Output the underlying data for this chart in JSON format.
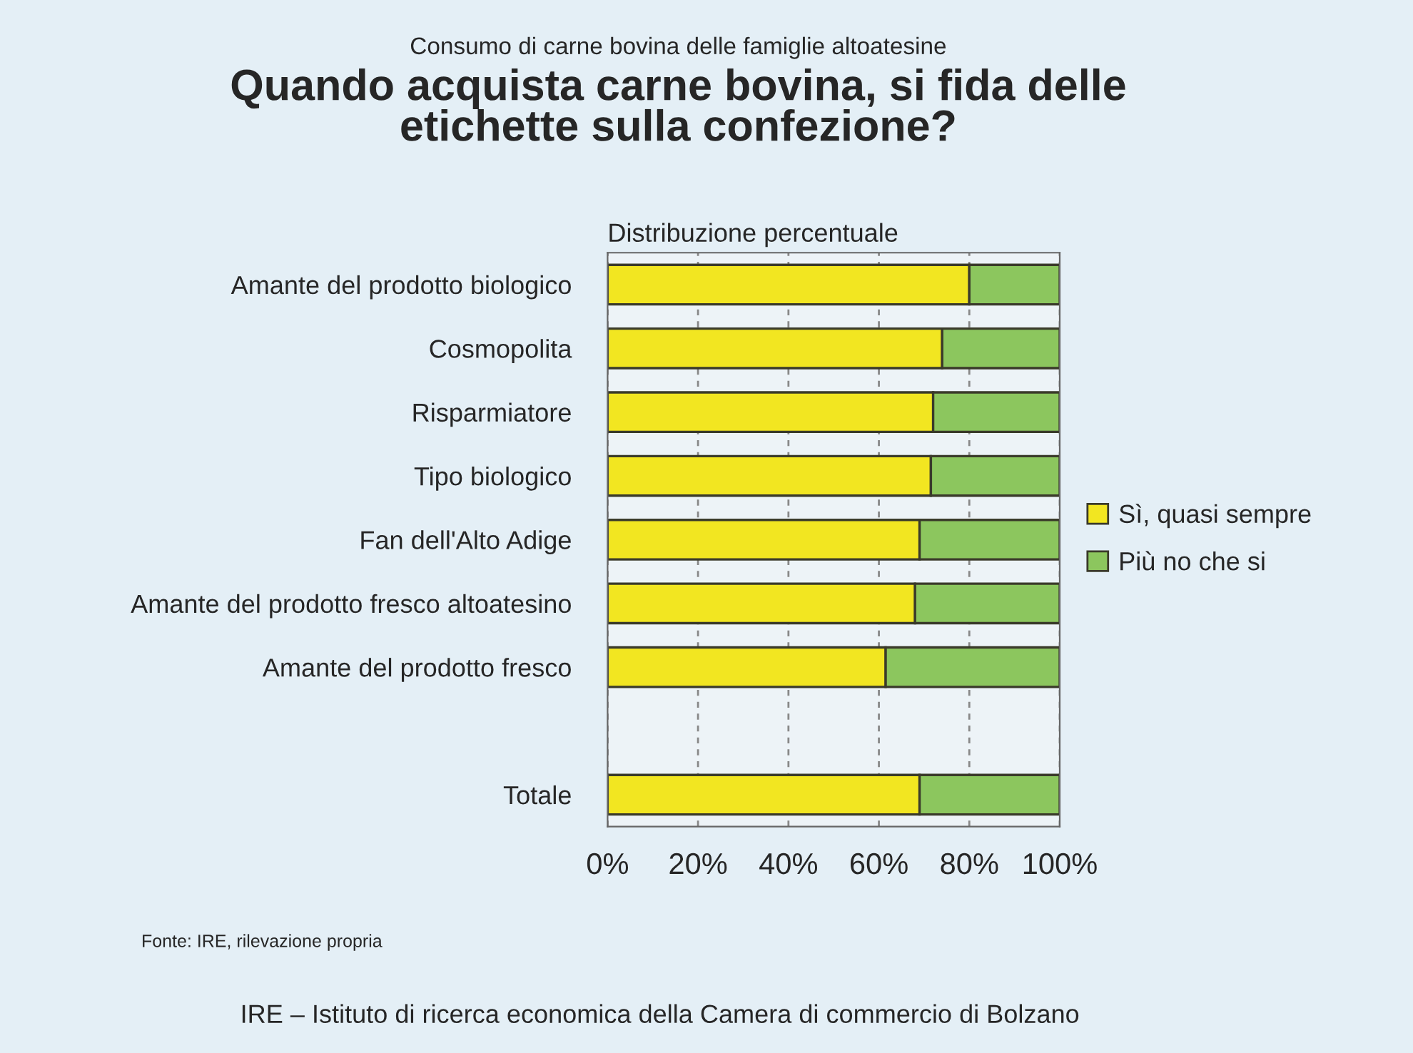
{
  "chart_data": {
    "type": "bar",
    "orientation": "horizontal",
    "stacked": true,
    "subtitle": "Consumo di carne bovina delle famiglie altoatesine",
    "title": "Quando acquista carne bovina, si fida delle\netichette sulla confezione?",
    "categories": [
      "Amante del prodotto biologico",
      "Cosmopolita",
      "Risparmiatore",
      "Tipo biologico",
      "Fan dell'Alto Adige",
      "Amante del prodotto fresco altoatesino",
      "Amante del prodotto fresco",
      null,
      "Totale"
    ],
    "series": [
      {
        "name": "Sì, quasi sempre",
        "color": "#f2e621",
        "values": [
          80,
          74,
          72,
          71.5,
          69,
          68,
          61.5,
          null,
          69
        ]
      },
      {
        "name": "Più no che si",
        "color": "#8cc65e",
        "values": [
          20,
          26,
          28,
          28.5,
          31,
          32,
          38.5,
          null,
          31
        ]
      }
    ],
    "xlim": [
      0,
      100
    ],
    "xticks": [
      {
        "value": 0,
        "label": "0%"
      },
      {
        "value": 20,
        "label": "20%"
      },
      {
        "value": 40,
        "label": "40%"
      },
      {
        "value": 60,
        "label": "60%"
      },
      {
        "value": 80,
        "label": "80%"
      },
      {
        "value": 100,
        "label": "100%"
      }
    ],
    "grid": "x",
    "legend": "right",
    "annotations": [
      "Distribuzione percentuale",
      "Fonte: IRE, rilevazione propria",
      "IRE – Istituto di ricerca economica della Camera di commercio di Bolzano"
    ]
  }
}
